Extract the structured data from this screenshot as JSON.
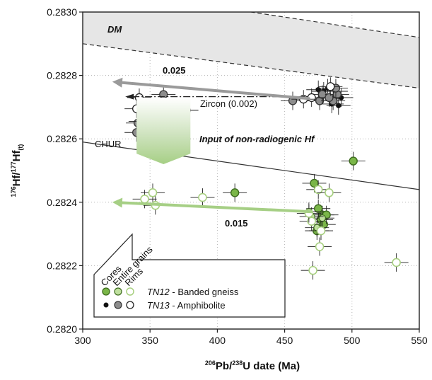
{
  "chart_data": {
    "type": "scatter",
    "xlabel": {
      "sup": "206",
      "mid": "Pb/",
      "sup2": "238",
      "tail": "U date (Ma)"
    },
    "ylabel": {
      "sup": "176",
      "mid": "Hf/",
      "sup2": "177",
      "tail": "Hf",
      "sub": "(t)"
    },
    "xlim": [
      300,
      550
    ],
    "ylim": [
      0.282,
      0.283
    ],
    "xticks": [
      "300",
      "350",
      "400",
      "450",
      "500",
      "550"
    ],
    "yticks": [
      "0.2820",
      "0.2822",
      "0.2824",
      "0.2826",
      "0.2828",
      "0.2830"
    ],
    "grid": "dotted",
    "annotations": {
      "dm": "DM",
      "chur": "CHUR",
      "arrow_grey": "0.025",
      "zircon": "Zircon (0.002)",
      "input": "Input of non-radiogenic Hf",
      "arrow_green": "0.015"
    },
    "legend": {
      "headers": [
        "Cores",
        "Entire grains",
        "Rims"
      ],
      "rows": [
        {
          "sample": "TN12",
          "desc": " - Banded gneiss"
        },
        {
          "sample": "TN13",
          "desc": " - Amphibolite"
        }
      ]
    },
    "colors": {
      "tn12_fill": "#7ab648",
      "tn12_edge": "#3d6b1e",
      "tn12_mid": "#bfe09e",
      "tn12_open": "#a8d080",
      "tn13_core": "#111111",
      "tn13_mid": "#8c8c8c",
      "tn13_edge": "#333333",
      "arrow_grey": "#9a9a9a",
      "arrow_green": "#a6cf85",
      "dm_band": "#e6e6e6"
    },
    "reference_lines": {
      "dm_upper": [
        [
          300,
          0.28308
        ],
        [
          550,
          0.28292
        ]
      ],
      "dm_lower": [
        [
          300,
          0.2829
        ],
        [
          550,
          0.28276
        ]
      ],
      "chur": [
        [
          300,
          0.28259
        ],
        [
          550,
          0.28244
        ]
      ],
      "zircon_line": [
        [
          340,
          0.282733
        ],
        [
          468,
          0.282733
        ]
      ]
    },
    "arrows": {
      "grey": {
        "from": [
          468,
          0.282727
        ],
        "to": [
          322,
          0.28278
        ]
      },
      "green": {
        "from": [
          470,
          0.28237
        ],
        "to": [
          322,
          0.2824
        ]
      }
    },
    "series": [
      {
        "name": "TN12 - Banded gneiss",
        "kind": "entire",
        "points": [
          [
            472,
            0.28246
          ],
          [
            478,
            0.28236
          ],
          [
            477,
            0.282345
          ],
          [
            479,
            0.28233
          ],
          [
            481,
            0.28236
          ],
          [
            475,
            0.28238
          ],
          [
            474,
            0.28231
          ],
          [
            501,
            0.28253
          ],
          [
            413,
            0.28243
          ]
        ]
      },
      {
        "name": "TN12 - Banded gneiss",
        "kind": "core",
        "points": [
          [
            478,
            0.28235
          ],
          [
            474,
            0.28232
          ],
          [
            470,
            0.282355
          ],
          [
            468,
            0.28237
          ]
        ]
      },
      {
        "name": "TN12 - Banded gneiss",
        "kind": "rim",
        "points": [
          [
            352,
            0.28243
          ],
          [
            346,
            0.28241
          ],
          [
            354,
            0.28239
          ],
          [
            389,
            0.282415
          ],
          [
            475,
            0.28244
          ],
          [
            483,
            0.28243
          ],
          [
            470,
            0.28234
          ],
          [
            476,
            0.28226
          ],
          [
            477,
            0.28231
          ],
          [
            471,
            0.282185
          ],
          [
            533,
            0.28221
          ],
          [
            468,
            0.282365
          ]
        ]
      },
      {
        "name": "TN13 - Amphibolite",
        "kind": "core",
        "points": [
          [
            343,
            0.282655
          ],
          [
            360,
            0.2827
          ],
          [
            475,
            0.282755
          ],
          [
            482,
            0.28276
          ],
          [
            488,
            0.28275
          ],
          [
            490,
            0.282705
          ],
          [
            479,
            0.28275
          ],
          [
            485,
            0.28271
          ],
          [
            492,
            0.28273
          ]
        ]
      },
      {
        "name": "TN13 - Amphibolite",
        "kind": "entire",
        "points": [
          [
            360,
            0.28274
          ],
          [
            377,
            0.28269
          ],
          [
            340,
            0.28262
          ],
          [
            341,
            0.28265
          ],
          [
            456,
            0.28272
          ],
          [
            476,
            0.28272
          ],
          [
            478,
            0.28274
          ],
          [
            486,
            0.28272
          ],
          [
            489,
            0.28274
          ],
          [
            488,
            0.28276
          ],
          [
            483,
            0.28273
          ]
        ]
      },
      {
        "name": "TN13 - Amphibolite",
        "kind": "rim",
        "points": [
          [
            342,
            0.28273
          ],
          [
            340,
            0.282695
          ],
          [
            344,
            0.282655
          ],
          [
            371,
            0.2826
          ],
          [
            470,
            0.28273
          ],
          [
            464,
            0.282725
          ],
          [
            484,
            0.282765
          ]
        ]
      }
    ]
  }
}
